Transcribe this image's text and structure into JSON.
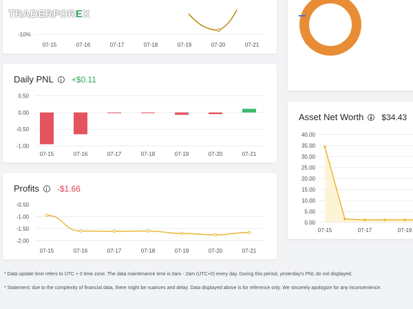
{
  "logo": {
    "part1": "TRADER",
    "part2": "FOR",
    "part3": "E",
    "part4": "X"
  },
  "top_chart": {
    "chart_data": {
      "type": "line",
      "x": [
        "07-15",
        "07-16",
        "07-17",
        "07-18",
        "07-19",
        "07-20",
        "07-21"
      ],
      "tick_label": "-10%",
      "color": "#b8860b"
    }
  },
  "daily_pnl": {
    "title": "Daily PNL",
    "value": "+$0.11",
    "chart_data": {
      "type": "bar",
      "categories": [
        "07-15",
        "07-16",
        "07-17",
        "07-18",
        "07-19",
        "07-20",
        "07-21"
      ],
      "values": [
        -0.95,
        -0.65,
        -0.01,
        -0.01,
        -0.07,
        -0.05,
        0.11
      ],
      "yticks": [
        0.5,
        0.0,
        -0.5,
        -1.0
      ],
      "ytick_labels": [
        "0.50",
        "0.00",
        "-0.50",
        "-1.00"
      ],
      "ylim": [
        -1.05,
        0.55
      ],
      "pos_color": "#3aba6f",
      "neg_color": "#e5535f"
    }
  },
  "profits": {
    "title": "Profits",
    "value": "-$1.66",
    "chart_data": {
      "type": "line",
      "categories": [
        "07-15",
        "07-16",
        "07-17",
        "07-18",
        "07-19",
        "07-20",
        "07-21"
      ],
      "values": [
        -0.95,
        -1.6,
        -1.61,
        -1.6,
        -1.7,
        -1.76,
        -1.66
      ],
      "yticks": [
        -1.0,
        -1.5,
        -2.0
      ],
      "ytick_labels": [
        "-1.00",
        "-1.50",
        "-2.00"
      ],
      "extra_tick": "-0.50",
      "ylim": [
        -2.1,
        -0.45
      ],
      "color": "#e8b630"
    }
  },
  "asset_net_worth": {
    "title": "Asset Net Worth",
    "value": "$34.43",
    "chart_data": {
      "type": "area",
      "x": [
        "07-15",
        "07-16",
        "07-17",
        "07-18",
        "07-19",
        "07-20"
      ],
      "x_labels": [
        "07-15",
        "07-17",
        "07-19"
      ],
      "values": [
        34.4,
        1.6,
        1.2,
        1.2,
        1.2,
        1.2
      ],
      "yticks": [
        40,
        35,
        30,
        25,
        20,
        15,
        10,
        5,
        0
      ],
      "ytick_labels": [
        "40.00",
        "35.00",
        "30.00",
        "25.00",
        "20.00",
        "15.00",
        "10.00",
        "5.00",
        "0.00"
      ],
      "ylim": [
        0,
        40
      ],
      "color": "#e8b630"
    }
  },
  "donut": {
    "color": "#e88d35",
    "accent": "#4a72c8"
  },
  "notes": [
    "* Data update time refers to UTC + 0 time zone. The data maintenance time is 0am - 2am (UTC+0) every day. During this period, yesterday's PNL do not displayed.",
    "* Statement: due to the complexity of financial data, there might be nuances and delay. Data displayed above is for reference only. We sincerely apologize for any inconvenience."
  ]
}
